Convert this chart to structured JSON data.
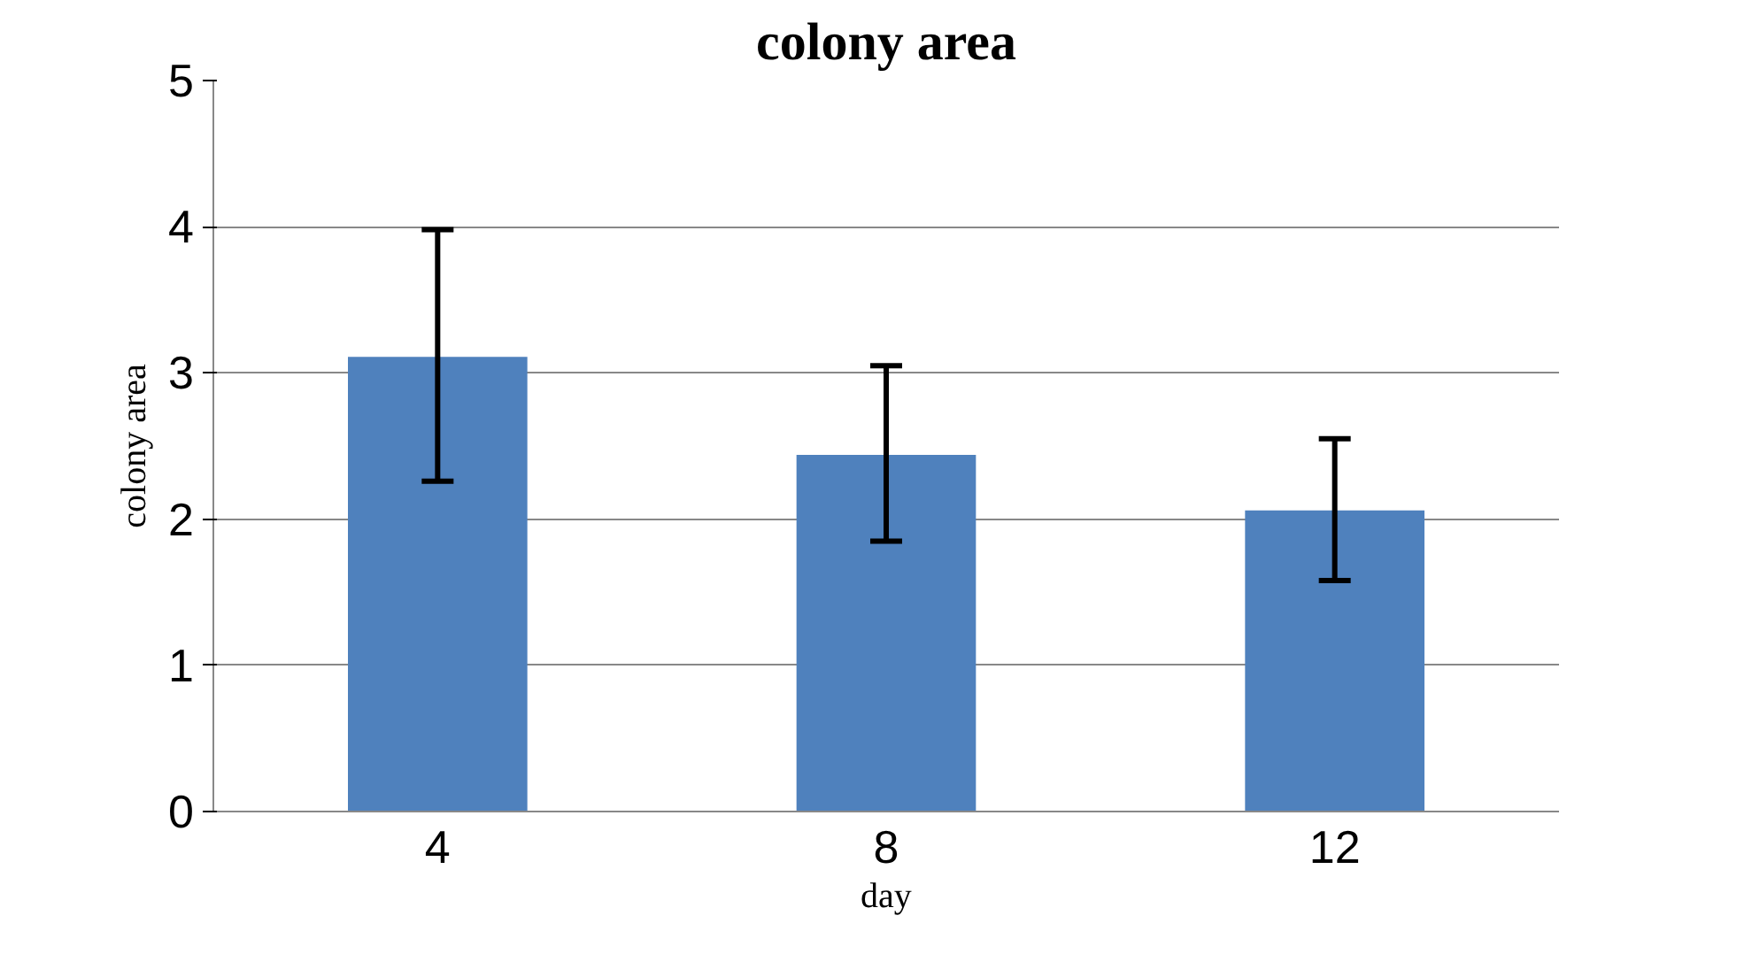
{
  "chart_data": {
    "type": "bar",
    "title": "colony area",
    "xlabel": "day",
    "ylabel": "colony area",
    "categories": [
      "4",
      "8",
      "12"
    ],
    "values": [
      3.11,
      2.44,
      2.06
    ],
    "errors": [
      [
        2.26,
        3.98
      ],
      [
        1.85,
        3.05
      ],
      [
        1.58,
        2.55
      ]
    ],
    "color": "#4f81bd",
    "ylim": [
      0,
      5
    ],
    "yticks": [
      0,
      1,
      2,
      3,
      4,
      5
    ],
    "grid": "y"
  }
}
